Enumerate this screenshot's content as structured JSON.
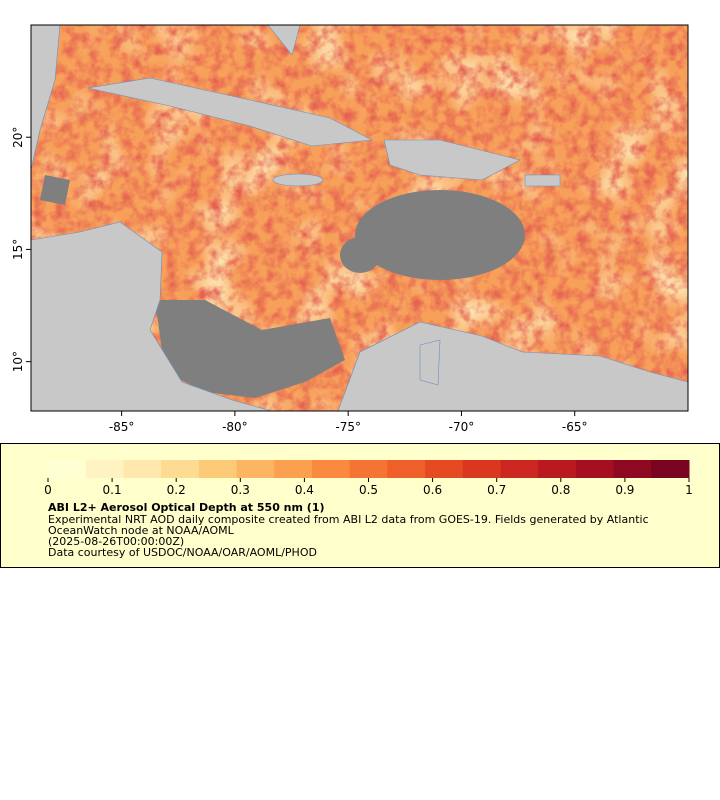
{
  "map": {
    "xlim": [
      -89,
      -60
    ],
    "ylim": [
      7.8,
      25
    ],
    "xticks": [
      {
        "value": -85,
        "label": "-85°"
      },
      {
        "value": -80,
        "label": "-80°"
      },
      {
        "value": -75,
        "label": "-75°"
      },
      {
        "value": -70,
        "label": "-70°"
      },
      {
        "value": -65,
        "label": "-65°"
      }
    ],
    "yticks": [
      {
        "value": 10,
        "label": "10°"
      },
      {
        "value": 15,
        "label": "15°"
      },
      {
        "value": 20,
        "label": "20°"
      }
    ]
  },
  "legend": {
    "clim": [
      0,
      1
    ],
    "ticks": [
      0,
      0.1,
      0.2,
      0.3,
      0.4,
      0.5,
      0.6,
      0.7,
      0.8,
      0.9,
      1
    ],
    "colormap": [
      "#ffffd4",
      "#fff3c2",
      "#fee8ac",
      "#fddb93",
      "#fdca78",
      "#fcb663",
      "#fba04f",
      "#f98a40",
      "#f57433",
      "#ef5f29",
      "#e64a22",
      "#db3720",
      "#cc2620",
      "#bb1920",
      "#a60f21",
      "#8f0822",
      "#790422"
    ],
    "title": "ABI L2+ Aerosol Optical Depth at 550 nm (1)",
    "description": "Experimental NRT AOD daily composite created from ABI L2 data from GOES-19. Fields generated by Atlantic OceanWatch node at NOAA/AOML",
    "time": "(2025-08-26T00:00:00Z)",
    "credit": "Data courtesy of USDOC/NOAA/OAR/AOML/PHOD"
  }
}
